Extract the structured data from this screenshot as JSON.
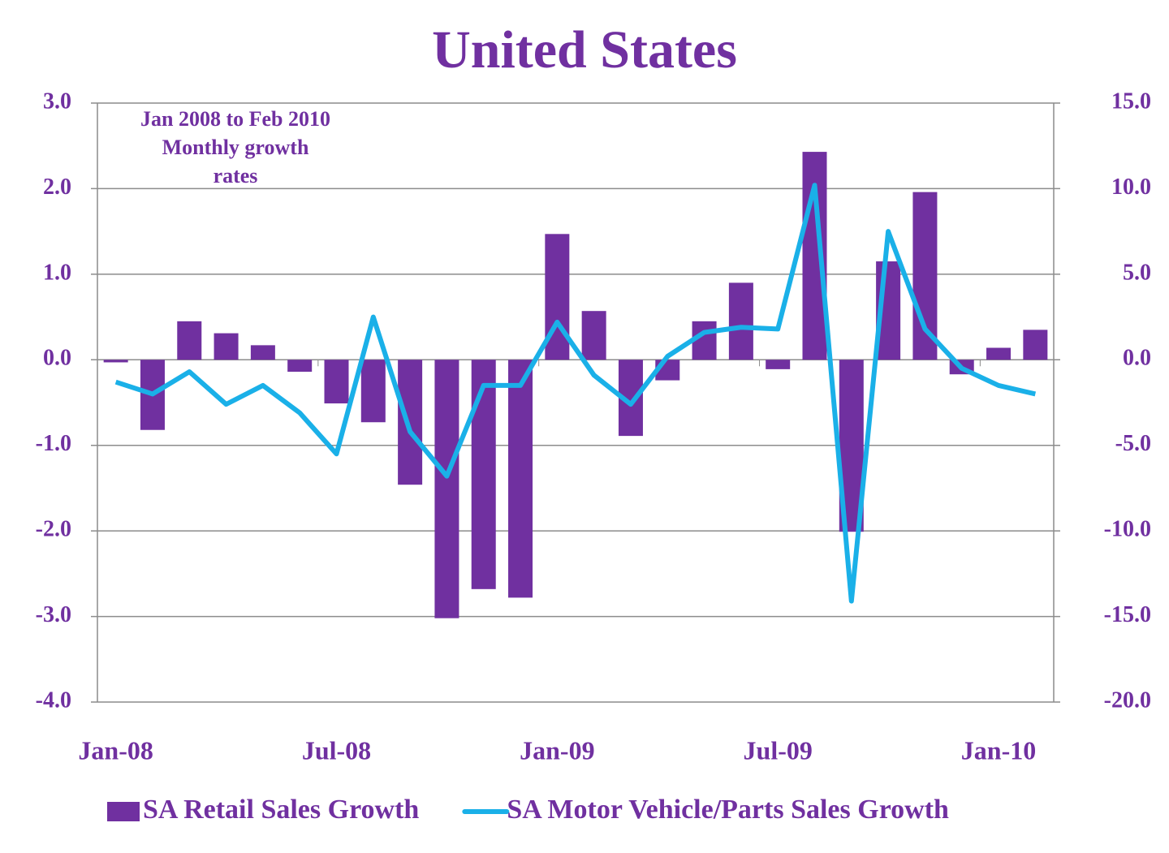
{
  "chart_data": {
    "type": "bar_line",
    "title": "United States",
    "annotation": [
      "Jan 2008 to Feb 2010",
      "Monthly growth",
      "rates"
    ],
    "categories": [
      "Jan-08",
      null,
      null,
      null,
      null,
      null,
      "Jul-08",
      null,
      null,
      null,
      null,
      null,
      "Jan-09",
      null,
      null,
      null,
      null,
      null,
      "Jul-09",
      null,
      null,
      null,
      null,
      null,
      "Jan-10",
      null
    ],
    "series": [
      {
        "name": "SA Retail Sales Growth",
        "type": "bar",
        "color": "#7030a0",
        "axis": "y",
        "values": [
          -0.03,
          -0.82,
          0.45,
          0.31,
          0.17,
          -0.14,
          -0.51,
          -0.73,
          -1.46,
          -3.02,
          -2.68,
          -2.78,
          1.47,
          0.57,
          -0.89,
          -0.24,
          0.45,
          0.9,
          -0.11,
          2.43,
          -2.01,
          1.15,
          1.96,
          -0.17,
          0.14,
          0.35
        ]
      },
      {
        "name": "SA Motor Vehicle/Parts Sales Growth",
        "type": "line",
        "color": "#1ab0e8",
        "axis": "y2",
        "values": [
          -1.3,
          -2.0,
          -0.7,
          -2.6,
          -1.5,
          -3.1,
          -5.5,
          2.5,
          -4.2,
          -6.8,
          -1.5,
          -1.5,
          2.2,
          -0.9,
          -2.6,
          0.2,
          1.6,
          1.9,
          1.8,
          10.2,
          -14.1,
          7.5,
          1.8,
          -0.5,
          -1.5,
          -2.0
        ]
      }
    ],
    "ylim": [
      -4,
      3
    ],
    "yticks": [
      {
        "value": -4,
        "label": "-4.0"
      },
      {
        "value": -3,
        "label": "-3.0"
      },
      {
        "value": -2,
        "label": "-2.0"
      },
      {
        "value": -1,
        "label": "-1.0"
      },
      {
        "value": 0,
        "label": "0.0"
      },
      {
        "value": 1,
        "label": "1.0"
      },
      {
        "value": 2,
        "label": "2.0"
      },
      {
        "value": 3,
        "label": "3.0"
      }
    ],
    "y2lim": [
      -20,
      15
    ],
    "y2ticks": [
      {
        "value": -20,
        "label": "-20.0"
      },
      {
        "value": -15,
        "label": "-15.0"
      },
      {
        "value": -10,
        "label": "-10.0"
      },
      {
        "value": -5,
        "label": "-5.0"
      },
      {
        "value": 0,
        "label": "0.0"
      },
      {
        "value": 5,
        "label": "5.0"
      },
      {
        "value": 10,
        "label": "10.0"
      },
      {
        "value": 15,
        "label": "15.0"
      }
    ],
    "grid": true,
    "legend": "bottom"
  }
}
